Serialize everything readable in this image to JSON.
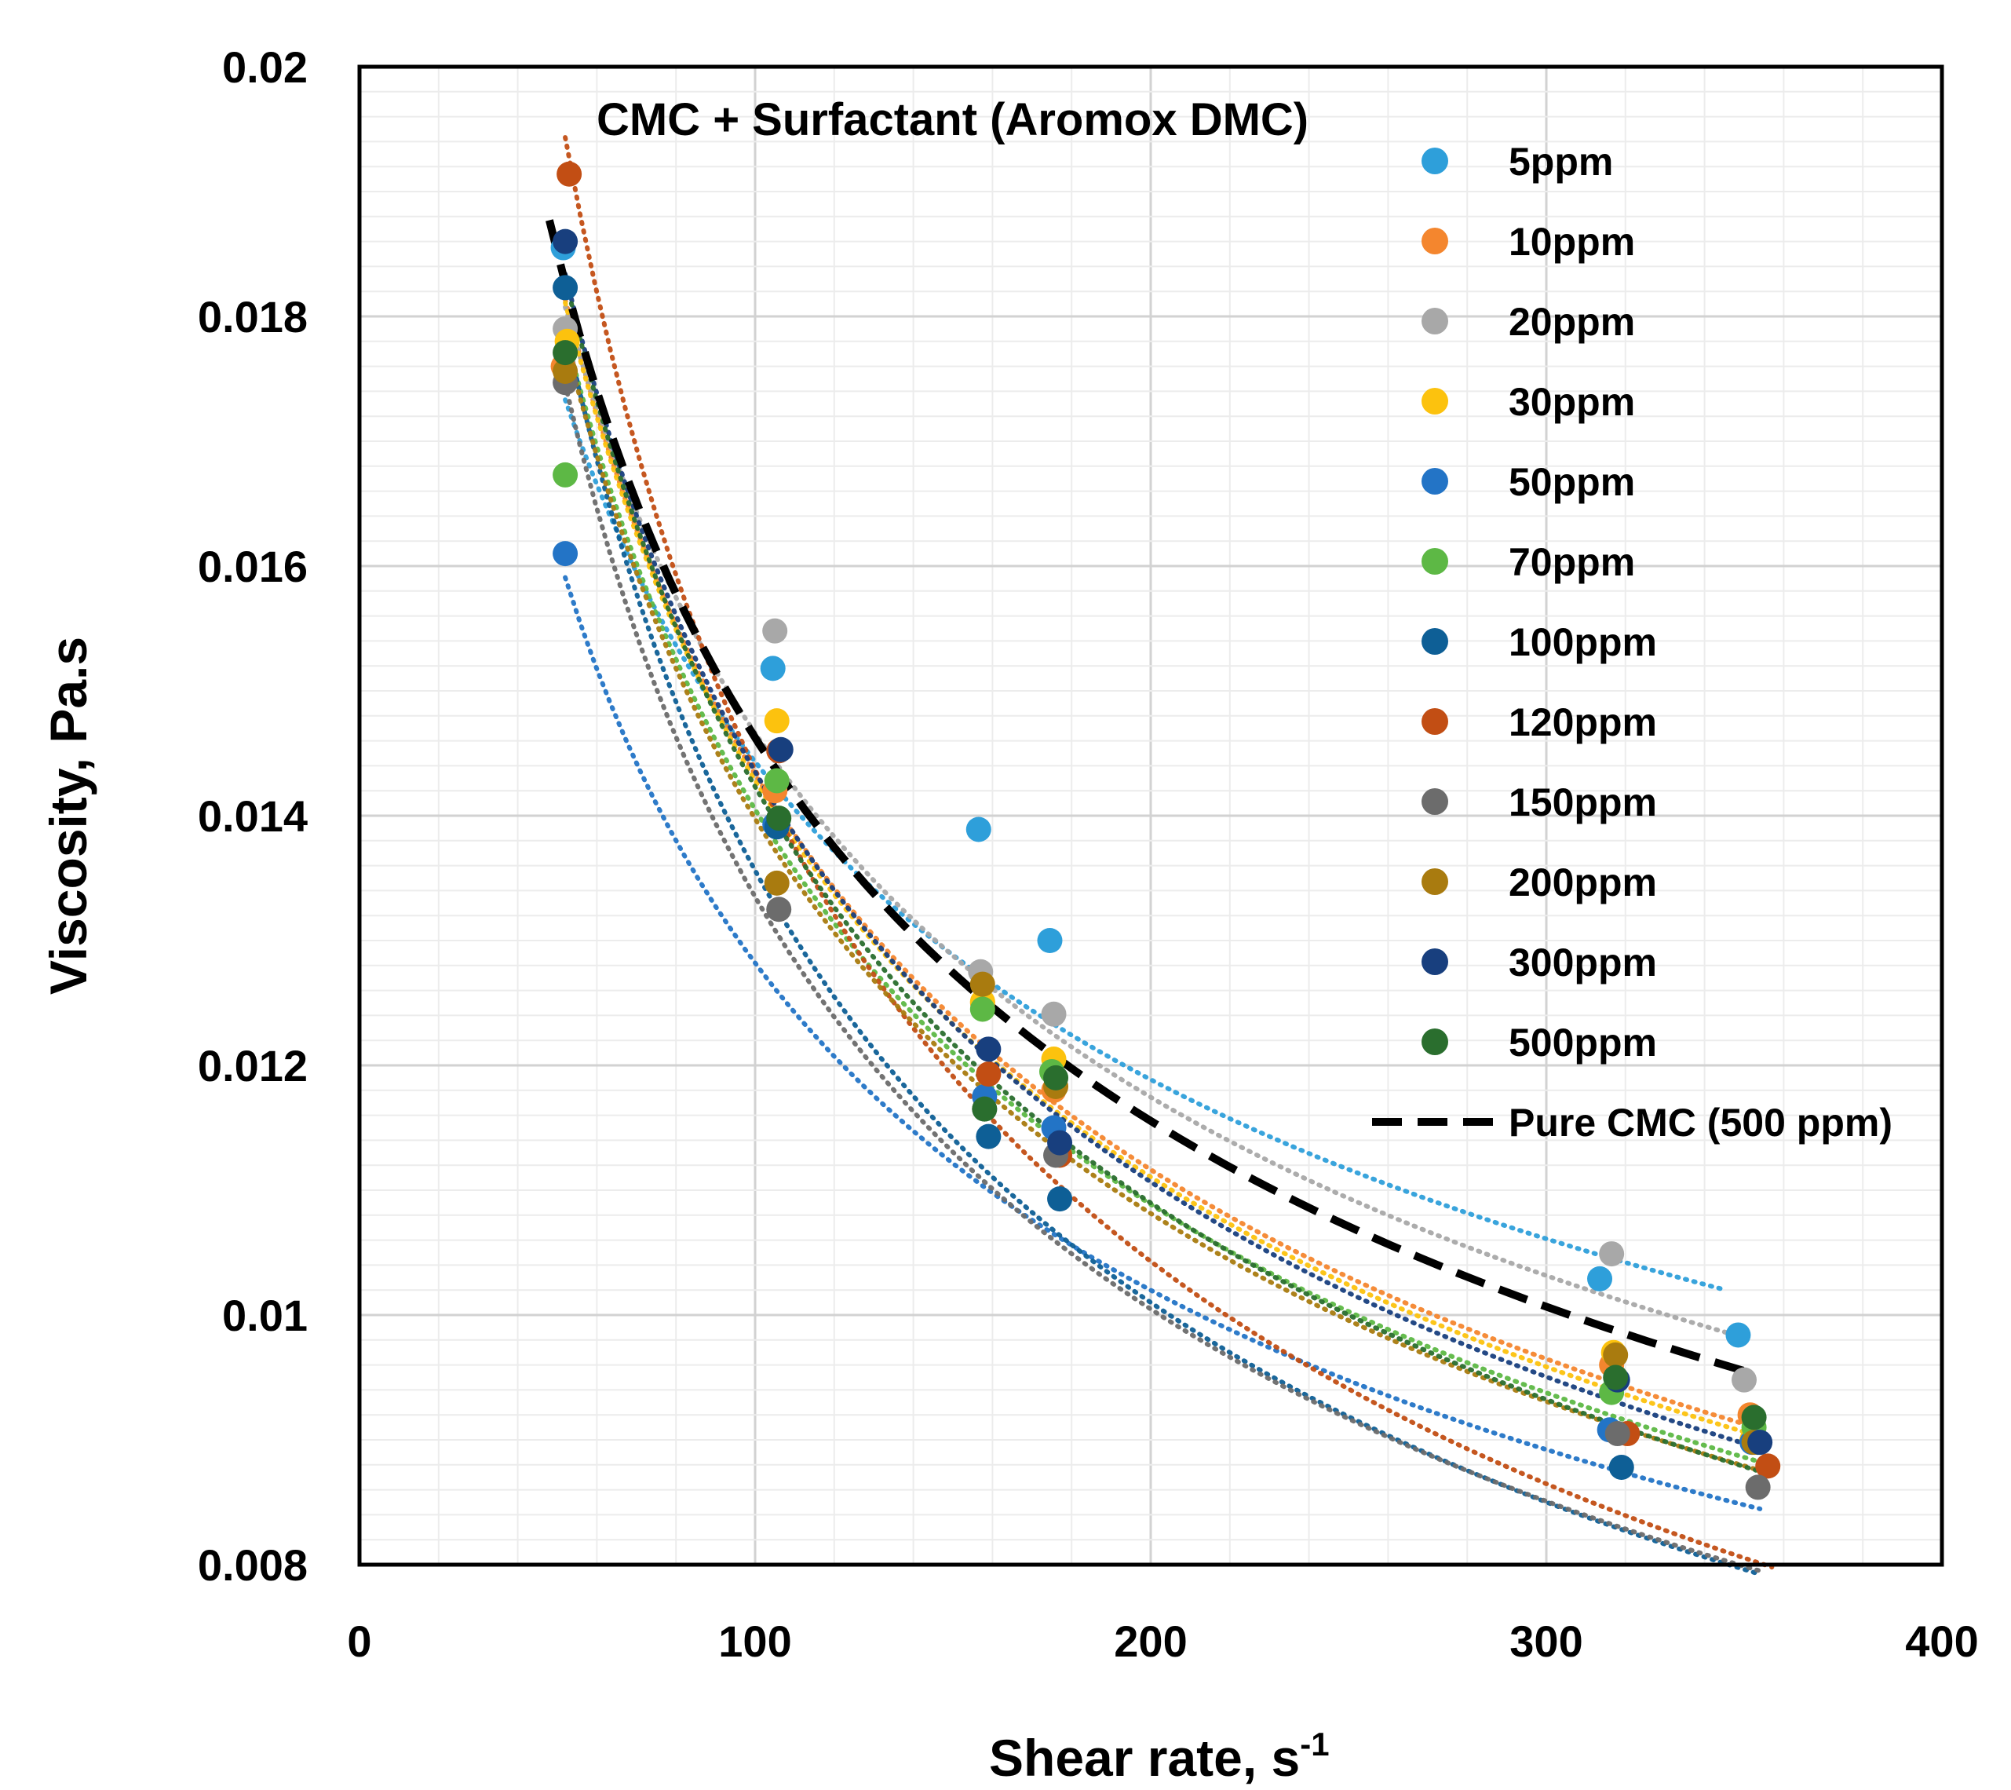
{
  "chart_data": {
    "type": "scatter",
    "title": "CMC + Surfactant (Aromox DMC)",
    "xlabel": "Shear rate, s",
    "xlabel_sup": "-1",
    "ylabel": "Viscosity, Pa.s",
    "xlim": [
      0,
      400
    ],
    "ylim": [
      0.008,
      0.02
    ],
    "x_ticks": [
      0,
      100,
      200,
      300,
      400
    ],
    "x_tick_labels": [
      "0",
      "100",
      "200",
      "300",
      "400"
    ],
    "y_ticks": [
      0.008,
      0.01,
      0.012,
      0.014,
      0.016,
      0.018,
      0.02
    ],
    "y_tick_labels": [
      "0.008",
      "0.01",
      "0.012",
      "0.014",
      "0.016",
      "0.018",
      "0.02"
    ],
    "grid": true,
    "legend_position": "top-right",
    "series": [
      {
        "name": "5ppm",
        "color": "#2e9fda",
        "fit": {
          "a": 0.0524,
          "b": -0.28,
          "x0": 52,
          "x1": 345
        },
        "points": [
          [
            51.5,
            0.01855
          ],
          [
            104.5,
            0.01518
          ],
          [
            156.5,
            0.01389
          ],
          [
            174.5,
            0.013
          ],
          [
            313.5,
            0.01029
          ],
          [
            348.5,
            0.00984
          ]
        ]
      },
      {
        "name": "10ppm",
        "color": "#f4862e",
        "fit": {
          "a": 0.0752,
          "b": -0.36,
          "x0": 52,
          "x1": 352
        },
        "points": [
          [
            51.5,
            0.0176
          ],
          [
            105,
            0.0142
          ],
          [
            157.5,
            0.0125
          ],
          [
            175.5,
            0.0118
          ],
          [
            316.5,
            0.0096
          ],
          [
            351.5,
            0.0092
          ]
        ]
      },
      {
        "name": "20ppm",
        "color": "#a8a8a8",
        "fit": {
          "a": 0.064,
          "b": -0.32,
          "x0": 52,
          "x1": 350
        },
        "points": [
          [
            52,
            0.0179
          ],
          [
            105,
            0.01548
          ],
          [
            157,
            0.01275
          ],
          [
            175.5,
            0.01241
          ],
          [
            316.5,
            0.01049
          ],
          [
            350,
            0.00948
          ]
        ]
      },
      {
        "name": "30ppm",
        "color": "#fcc20e",
        "fit": {
          "a": 0.076,
          "b": -0.363,
          "x0": 52,
          "x1": 353
        },
        "points": [
          [
            52.5,
            0.0178
          ],
          [
            105.5,
            0.01476
          ],
          [
            157.5,
            0.01251
          ],
          [
            175.5,
            0.01205
          ],
          [
            317,
            0.0097
          ],
          [
            352,
            0.009
          ]
        ]
      },
      {
        "name": "50ppm",
        "color": "#2374c6",
        "fit": {
          "a": 0.0586,
          "b": -0.33,
          "x0": 52,
          "x1": 354
        },
        "points": [
          [
            52,
            0.0161
          ],
          [
            105,
            0.01393
          ],
          [
            158,
            0.01175
          ],
          [
            175.5,
            0.0115
          ],
          [
            316,
            0.00908
          ],
          [
            352,
            0.00898
          ]
        ]
      },
      {
        "name": "70ppm",
        "color": "#5db845",
        "fit": {
          "a": 0.0765,
          "b": -0.368,
          "x0": 52,
          "x1": 353
        },
        "points": [
          [
            52,
            0.01673
          ],
          [
            105.5,
            0.01428
          ],
          [
            157.5,
            0.01245
          ],
          [
            175,
            0.01195
          ],
          [
            316.5,
            0.00938
          ],
          [
            352.5,
            0.0091
          ]
        ]
      },
      {
        "name": "100ppm",
        "color": "#0e5f96",
        "fit": {
          "a": 0.096,
          "b": -0.425,
          "x0": 52,
          "x1": 354
        },
        "points": [
          [
            52,
            0.01823
          ],
          [
            105.5,
            0.01391
          ],
          [
            159,
            0.01143
          ],
          [
            177,
            0.01093
          ],
          [
            319,
            0.00878
          ],
          [
            353.5,
            0.00898
          ]
        ]
      },
      {
        "name": "120ppm",
        "color": "#c24e14",
        "fit": {
          "a": 0.1206,
          "b": -0.462,
          "x0": 52,
          "x1": 357
        },
        "points": [
          [
            53,
            0.01914
          ],
          [
            106,
            0.01452
          ],
          [
            159,
            0.01193
          ],
          [
            177,
            0.01128
          ],
          [
            320.5,
            0.00905
          ],
          [
            356,
            0.00879
          ]
        ]
      },
      {
        "name": "150ppm",
        "color": "#6c6c6c",
        "fit": {
          "a": 0.0882,
          "b": -0.41,
          "x0": 52,
          "x1": 354
        },
        "points": [
          [
            52,
            0.01747
          ],
          [
            106,
            0.01325
          ],
          [
            158,
            0.01165
          ],
          [
            176,
            0.01128
          ],
          [
            318,
            0.00905
          ],
          [
            353.5,
            0.00862
          ]
        ]
      },
      {
        "name": "200ppm",
        "color": "#a97b0f",
        "fit": {
          "a": 0.0768,
          "b": -0.37,
          "x0": 52,
          "x1": 353
        },
        "points": [
          [
            52,
            0.01756
          ],
          [
            105.5,
            0.01346
          ],
          [
            157.5,
            0.01265
          ],
          [
            176,
            0.01183
          ],
          [
            317.5,
            0.00968
          ],
          [
            352.5,
            0.00898
          ]
        ]
      },
      {
        "name": "300ppm",
        "color": "#183f7e",
        "fit": {
          "a": 0.0807,
          "b": -0.375,
          "x0": 52,
          "x1": 354
        },
        "points": [
          [
            52,
            0.0186
          ],
          [
            106.5,
            0.01453
          ],
          [
            159,
            0.01213
          ],
          [
            177,
            0.01138
          ],
          [
            318,
            0.00948
          ],
          [
            354,
            0.00898
          ]
        ]
      },
      {
        "name": "500ppm",
        "color": "#2a6e2e",
        "fit": {
          "a": 0.0838,
          "b": -0.385,
          "x0": 52,
          "x1": 353
        },
        "points": [
          [
            52,
            0.01771
          ],
          [
            106,
            0.01398
          ],
          [
            158,
            0.01165
          ],
          [
            176,
            0.0119
          ],
          [
            317.5,
            0.0095
          ],
          [
            352.5,
            0.00918
          ]
        ]
      }
    ],
    "reference_line": {
      "name": "Pure CMC (500 ppm)",
      "color": "#000000",
      "style": "dashed",
      "fit": {
        "a": 0.07,
        "b": -0.34,
        "x0": 48,
        "x1": 352
      }
    }
  }
}
